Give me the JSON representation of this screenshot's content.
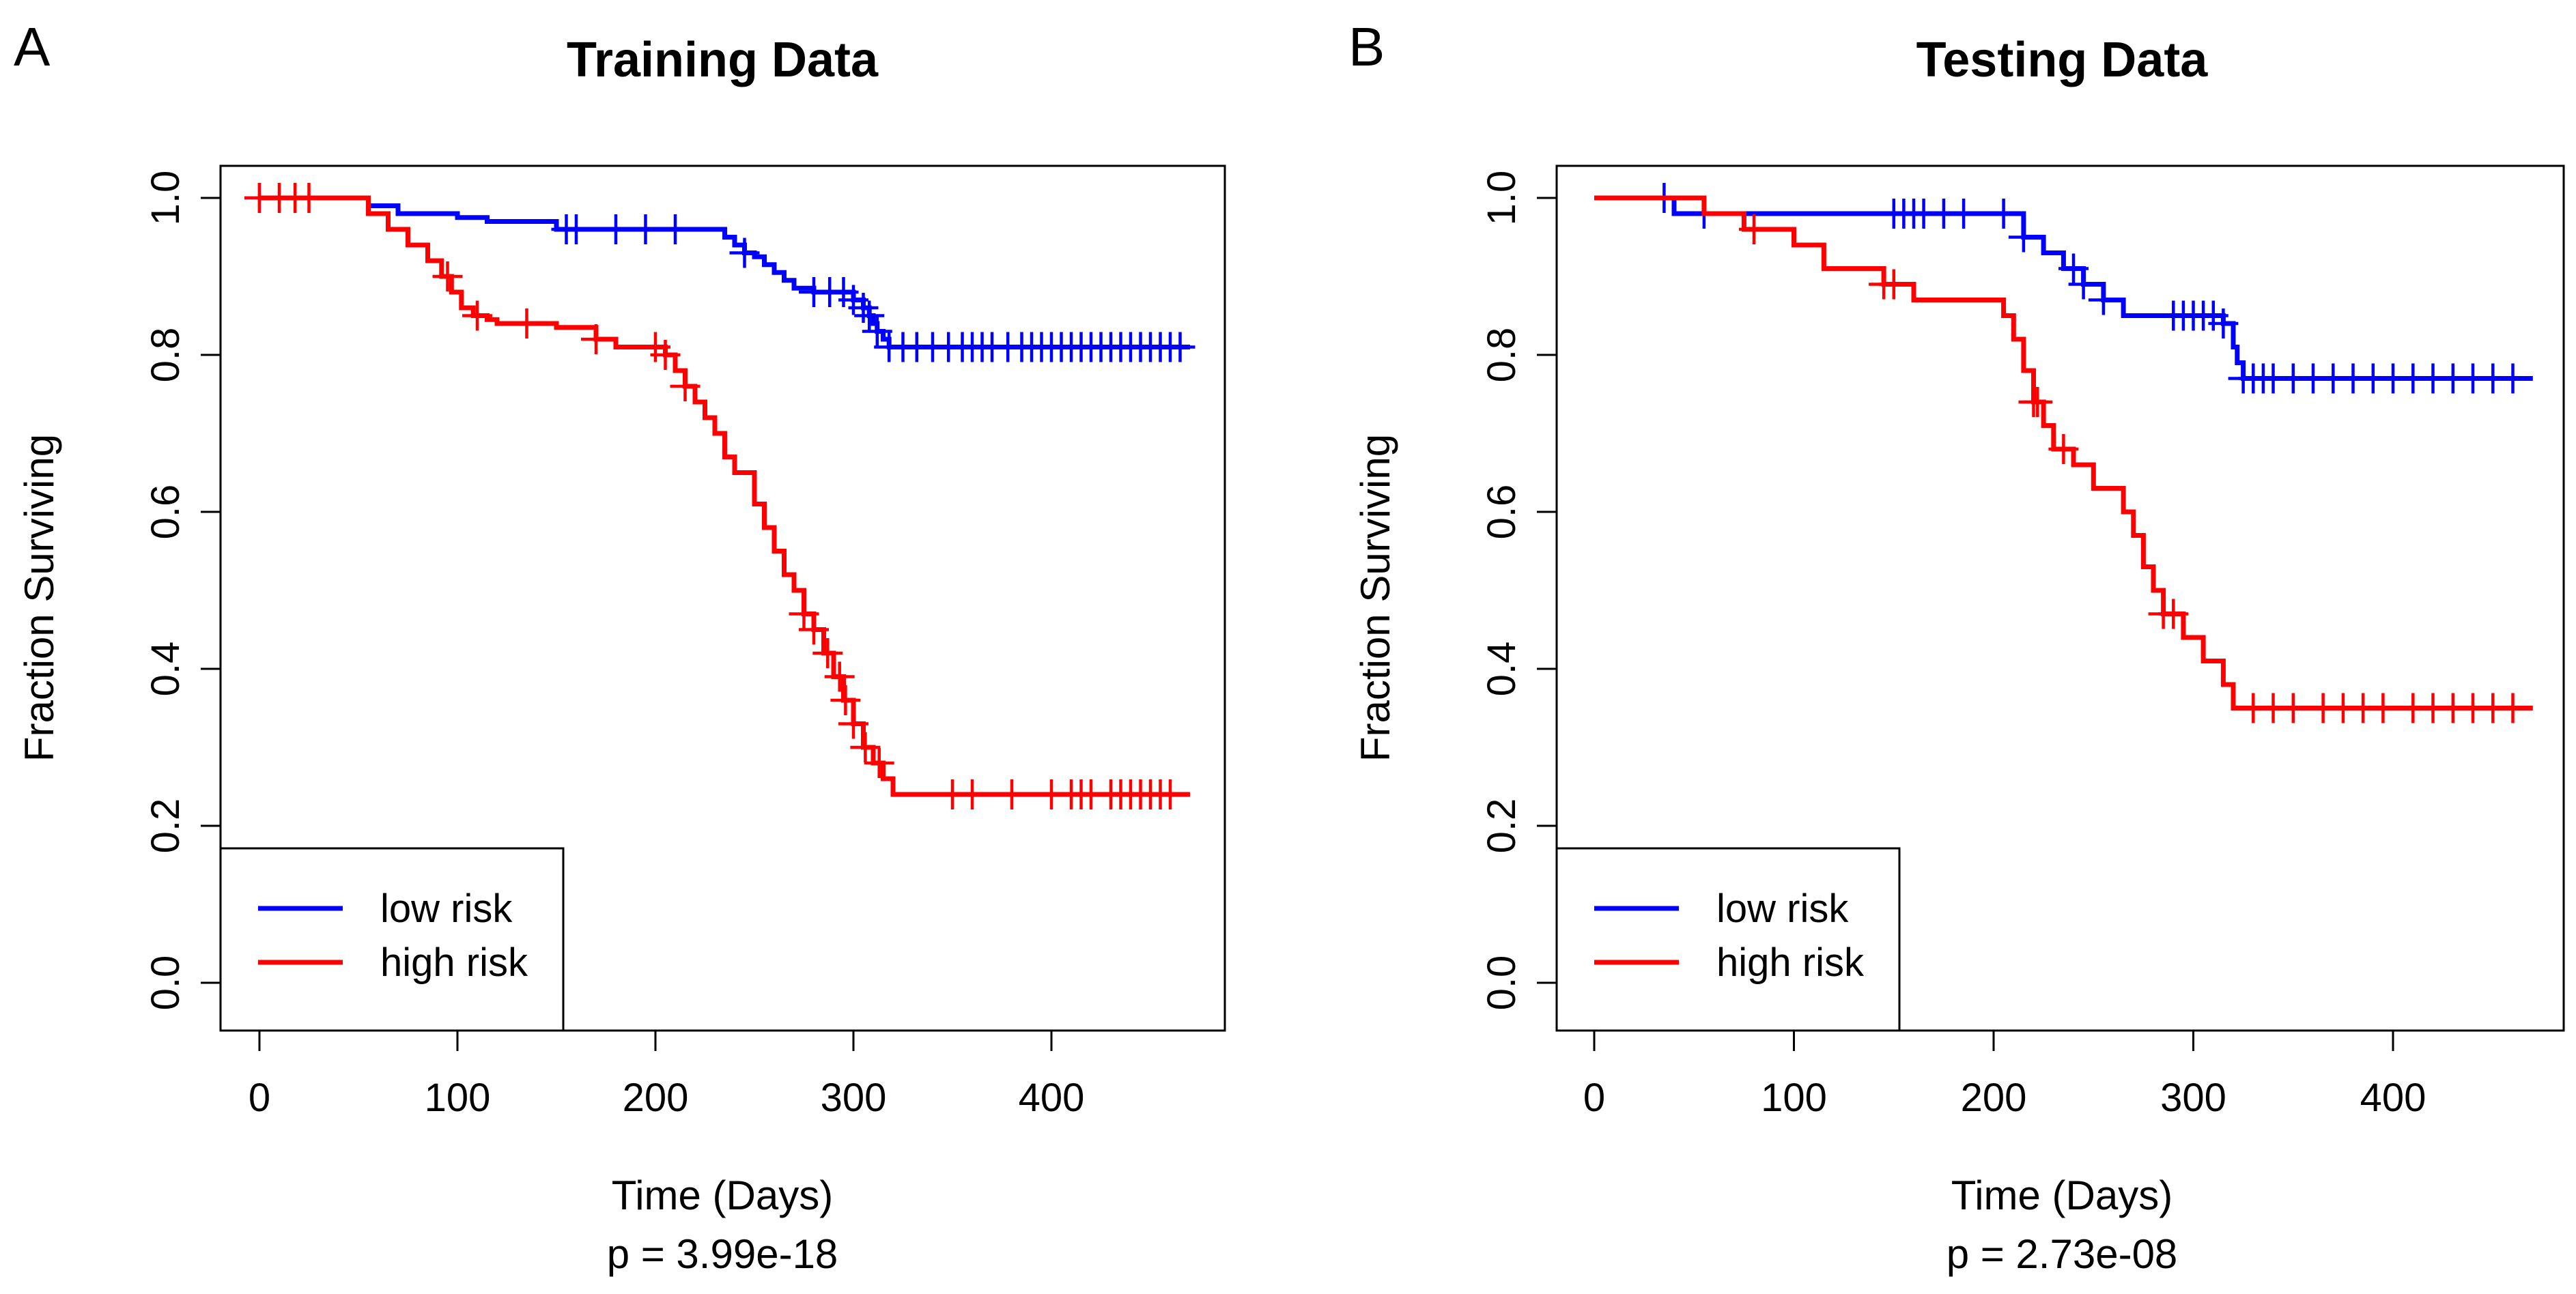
{
  "figure": {
    "panels": [
      {
        "letter": "A",
        "pvalue_label": "p = 3.99e-18"
      },
      {
        "letter": "B",
        "pvalue_label": "p = 2.73e-08"
      }
    ]
  },
  "chart_data": [
    {
      "type": "line",
      "subtype": "kaplan-meier",
      "title": "Training Data",
      "xlabel": "Time (Days)",
      "ylabel": "Fraction Surviving",
      "xlim": [
        0,
        470
      ],
      "ylim": [
        0,
        1
      ],
      "xticks": [
        0,
        100,
        200,
        300,
        400
      ],
      "xtick_labels": [
        "0",
        "100",
        "200",
        "300",
        "400"
      ],
      "yticks": [
        0,
        0.2,
        0.4,
        0.6,
        0.8,
        1.0
      ],
      "ytick_labels": [
        "0.0",
        "0.2",
        "0.4",
        "0.6",
        "0.8",
        "1.0"
      ],
      "legend_position": "bottom-left",
      "series": [
        {
          "name": "low risk",
          "color": "#0000ff",
          "x": [
            0,
            40,
            55,
            70,
            100,
            115,
            150,
            230,
            235,
            240,
            245,
            250,
            255,
            260,
            265,
            270,
            280,
            300,
            305,
            308,
            310,
            312,
            315,
            318,
            470
          ],
          "y": [
            1.0,
            1.0,
            0.99,
            0.98,
            0.975,
            0.97,
            0.96,
            0.96,
            0.95,
            0.94,
            0.93,
            0.925,
            0.915,
            0.905,
            0.895,
            0.885,
            0.88,
            0.87,
            0.86,
            0.85,
            0.84,
            0.83,
            0.82,
            0.81,
            0.81
          ],
          "censored_x": [
            0,
            155,
            160,
            180,
            195,
            210,
            245,
            280,
            288,
            295,
            300,
            305,
            308,
            312,
            318,
            325,
            332,
            340,
            348,
            355,
            360,
            365,
            370,
            378,
            385,
            390,
            395,
            400,
            405,
            410,
            415,
            420,
            425,
            430,
            435,
            440,
            445,
            450,
            455,
            460,
            465
          ]
        },
        {
          "name": "high risk",
          "color": "#ff0000",
          "x": [
            0,
            40,
            55,
            65,
            75,
            85,
            92,
            97,
            102,
            108,
            115,
            120,
            150,
            170,
            180,
            205,
            210,
            215,
            220,
            225,
            230,
            235,
            240,
            250,
            255,
            260,
            265,
            270,
            275,
            280,
            285,
            290,
            295,
            300,
            305,
            310,
            315,
            320,
            470
          ],
          "y": [
            1.0,
            1.0,
            0.98,
            0.96,
            0.94,
            0.92,
            0.9,
            0.88,
            0.86,
            0.85,
            0.845,
            0.84,
            0.835,
            0.82,
            0.81,
            0.8,
            0.78,
            0.76,
            0.74,
            0.72,
            0.7,
            0.67,
            0.65,
            0.61,
            0.58,
            0.55,
            0.52,
            0.5,
            0.47,
            0.45,
            0.42,
            0.39,
            0.36,
            0.33,
            0.3,
            0.28,
            0.26,
            0.24,
            0.24
          ],
          "censored_x": [
            0,
            10,
            18,
            25,
            95,
            110,
            135,
            170,
            200,
            205,
            215,
            275,
            280,
            287,
            293,
            296,
            300,
            306,
            313,
            350,
            360,
            380,
            400,
            410,
            415,
            420,
            430,
            435,
            440,
            445,
            450,
            455,
            460
          ]
        }
      ]
    },
    {
      "type": "line",
      "subtype": "kaplan-meier",
      "title": "Testing Data",
      "xlabel": "Time (Days)",
      "ylabel": "Fraction Surviving",
      "xlim": [
        0,
        470
      ],
      "ylim": [
        0,
        1
      ],
      "xticks": [
        0,
        100,
        200,
        300,
        400
      ],
      "xtick_labels": [
        "0",
        "100",
        "200",
        "300",
        "400"
      ],
      "yticks": [
        0,
        0.2,
        0.4,
        0.6,
        0.8,
        1.0
      ],
      "ytick_labels": [
        "0.0",
        "0.2",
        "0.4",
        "0.6",
        "0.8",
        "1.0"
      ],
      "legend_position": "bottom-left",
      "series": [
        {
          "name": "low risk",
          "color": "#0000ff",
          "x": [
            0,
            30,
            40,
            205,
            215,
            225,
            235,
            245,
            255,
            265,
            315,
            320,
            322,
            325,
            470
          ],
          "y": [
            1.0,
            1.0,
            0.98,
            0.98,
            0.95,
            0.93,
            0.91,
            0.89,
            0.87,
            0.85,
            0.84,
            0.81,
            0.79,
            0.77,
            0.77
          ],
          "censored_x": [
            35,
            55,
            150,
            155,
            160,
            165,
            175,
            185,
            205,
            215,
            240,
            245,
            255,
            290,
            295,
            300,
            305,
            310,
            315,
            325,
            330,
            335,
            340,
            350,
            360,
            370,
            380,
            390,
            400,
            410,
            420,
            430,
            440,
            450,
            460
          ]
        },
        {
          "name": "high risk",
          "color": "#ff0000",
          "x": [
            0,
            40,
            55,
            75,
            100,
            115,
            145,
            160,
            205,
            210,
            215,
            220,
            225,
            230,
            240,
            250,
            265,
            270,
            275,
            280,
            285,
            295,
            305,
            315,
            320,
            470
          ],
          "y": [
            1.0,
            1.0,
            0.98,
            0.96,
            0.94,
            0.91,
            0.89,
            0.87,
            0.85,
            0.82,
            0.78,
            0.74,
            0.71,
            0.68,
            0.66,
            0.63,
            0.6,
            0.57,
            0.53,
            0.5,
            0.47,
            0.44,
            0.41,
            0.38,
            0.35,
            0.35
          ],
          "censored_x": [
            80,
            145,
            150,
            220,
            222,
            235,
            285,
            290,
            330,
            340,
            350,
            365,
            375,
            385,
            395,
            410,
            420,
            430,
            440,
            450,
            460
          ]
        }
      ]
    }
  ]
}
